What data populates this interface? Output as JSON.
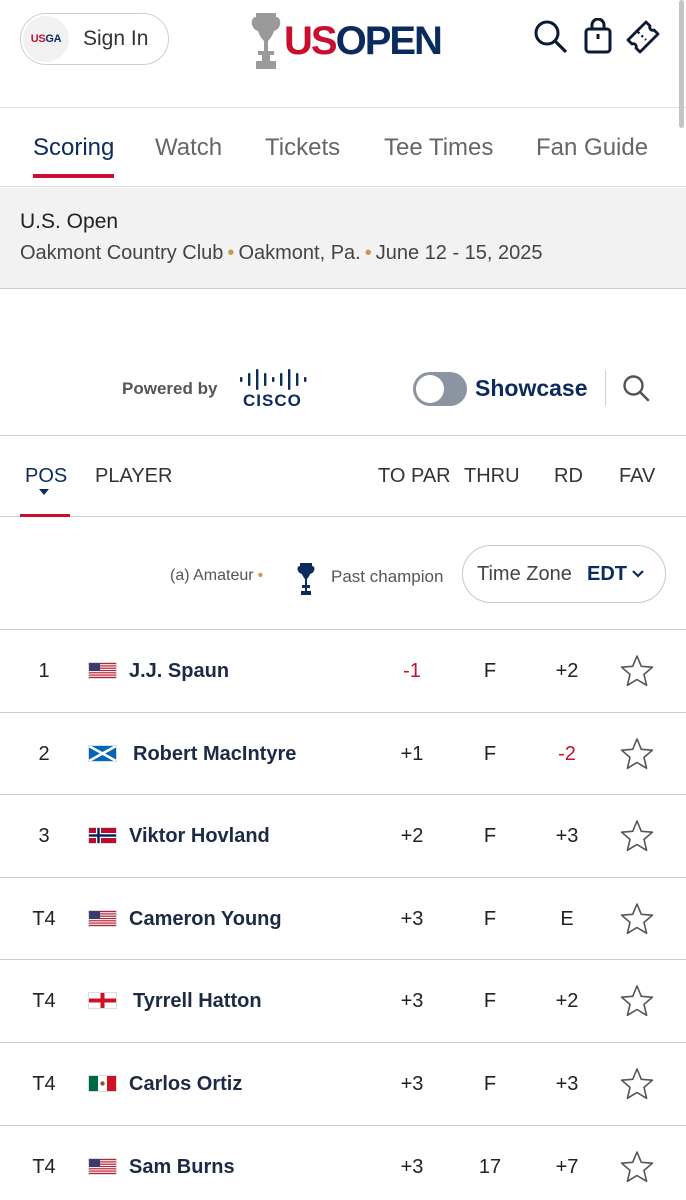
{
  "header": {
    "usga_badge_prefix": "US",
    "usga_badge_suffix": "GA",
    "sign_in_label": "Sign In",
    "logo_us": "US",
    "logo_open": "OPEN",
    "icons": [
      "search-icon",
      "bag-icon",
      "ticket-icon"
    ]
  },
  "nav": {
    "tabs": [
      "Scoring",
      "Watch",
      "Tickets",
      "Tee Times",
      "Fan Guide"
    ],
    "active": "Scoring"
  },
  "event": {
    "title": "U.S. Open",
    "venue": "Oakmont Country Club",
    "location": "Oakmont, Pa.",
    "dates": "June 12 - 15, 2025",
    "separator": "•"
  },
  "sponsor": {
    "powered_by": "Powered by",
    "brand": "CISCO"
  },
  "showcase": {
    "label": "Showcase",
    "enabled": false
  },
  "columns": {
    "pos": "POS",
    "player": "PLAYER",
    "to_par": "TO PAR",
    "thru": "THRU",
    "rd": "RD",
    "fav": "FAV"
  },
  "legend": {
    "amateur": "(a) Amateur",
    "past_champion": "Past champion",
    "time_zone_label": "Time Zone",
    "time_zone_value": "EDT"
  },
  "colors": {
    "brand_red": "#c8102e",
    "brand_navy": "#0b2b5e",
    "accent_gold": "#c99a4a"
  },
  "leaderboard": [
    {
      "pos": "1",
      "name": "J.J. Spaun",
      "country": "usa-flag",
      "to_par": "-1",
      "thru": "F",
      "rd": "+2"
    },
    {
      "pos": "2",
      "name": "Robert MacIntyre",
      "country": "scotland-flag",
      "to_par": "+1",
      "thru": "F",
      "rd": "-2"
    },
    {
      "pos": "3",
      "name": "Viktor Hovland",
      "country": "norway-flag",
      "to_par": "+2",
      "thru": "F",
      "rd": "+3"
    },
    {
      "pos": "T4",
      "name": "Cameron Young",
      "country": "usa-flag",
      "to_par": "+3",
      "thru": "F",
      "rd": "E"
    },
    {
      "pos": "T4",
      "name": "Tyrrell Hatton",
      "country": "england-flag",
      "to_par": "+3",
      "thru": "F",
      "rd": "+2"
    },
    {
      "pos": "T4",
      "name": "Carlos Ortiz",
      "country": "mexico-flag",
      "to_par": "+3",
      "thru": "F",
      "rd": "+3"
    },
    {
      "pos": "T4",
      "name": "Sam Burns",
      "country": "usa-flag",
      "to_par": "+3",
      "thru": "17",
      "rd": "+7"
    }
  ]
}
